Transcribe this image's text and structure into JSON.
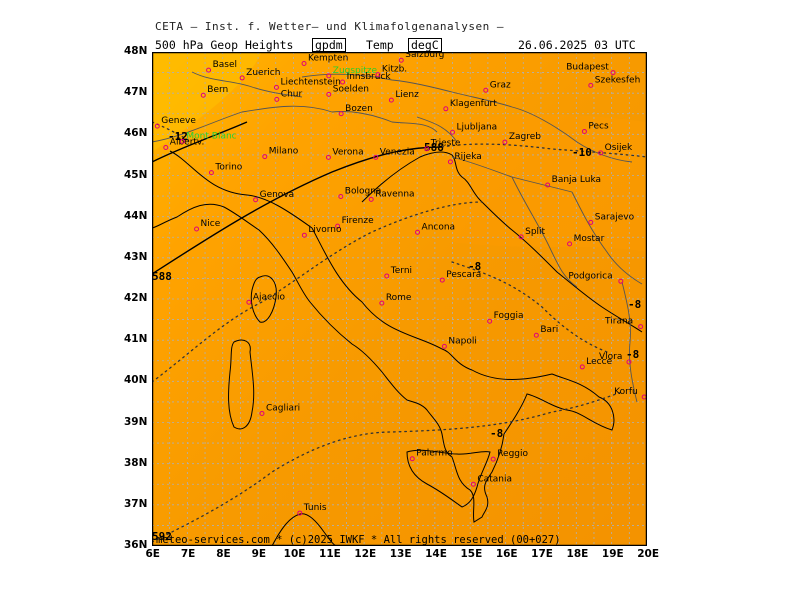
{
  "header": {
    "agency": "CETA — Inst. f. Wetter— und Klimafolgenanalysen —"
  },
  "title_bar": {
    "field_label": "500 hPa Geop Heights",
    "unit_height": "gpdm",
    "temp_label": "Temp",
    "unit_temp": "degC",
    "datetime": "26.06.2025 03 UTC"
  },
  "footer": {
    "copyright": "meteo-services.com * (c)2025 IWKF * All rights reserved (00+027)"
  },
  "axes": {
    "lat_labels": [
      "48N",
      "47N",
      "46N",
      "45N",
      "44N",
      "43N",
      "42N",
      "41N",
      "40N",
      "39N",
      "38N",
      "37N",
      "36N"
    ],
    "lon_labels": [
      "6E",
      "7E",
      "8E",
      "9E",
      "10E",
      "11E",
      "12E",
      "13E",
      "14E",
      "15E",
      "16E",
      "17E",
      "18E",
      "19E",
      "20E"
    ]
  },
  "contours": {
    "height_labels": [
      "588",
      "592",
      "588"
    ],
    "temp_labels": [
      "-12",
      "-10",
      "-8",
      "-8",
      "-8",
      "-8"
    ]
  },
  "cities": [
    {
      "name": "Basel",
      "lon": 7.6,
      "lat": 47.56,
      "color": "#000"
    },
    {
      "name": "Zuerich",
      "lon": 8.55,
      "lat": 47.37,
      "color": "#000"
    },
    {
      "name": "Bern",
      "lon": 7.45,
      "lat": 46.95,
      "color": "#000"
    },
    {
      "name": "Chur",
      "lon": 9.53,
      "lat": 46.85,
      "color": "#000"
    },
    {
      "name": "Liechtenstein",
      "lon": 9.52,
      "lat": 47.14,
      "color": "#000"
    },
    {
      "name": "Kempten",
      "lon": 10.3,
      "lat": 47.72,
      "color": "#000"
    },
    {
      "name": "Zugspitze",
      "lon": 11.0,
      "lat": 47.42,
      "color": "#2ad02a"
    },
    {
      "name": "Innsbruck",
      "lon": 11.39,
      "lat": 47.27,
      "color": "#000"
    },
    {
      "name": "Kitzb.",
      "lon": 12.39,
      "lat": 47.45,
      "color": "#000"
    },
    {
      "name": "Salzburg",
      "lon": 13.05,
      "lat": 47.8,
      "color": "#000"
    },
    {
      "name": "Soelden",
      "lon": 11.0,
      "lat": 46.97,
      "color": "#000"
    },
    {
      "name": "Lienz",
      "lon": 12.77,
      "lat": 46.83,
      "color": "#000"
    },
    {
      "name": "Bozen",
      "lon": 11.35,
      "lat": 46.5,
      "color": "#000"
    },
    {
      "name": "Graz",
      "lon": 15.44,
      "lat": 47.07,
      "color": "#000"
    },
    {
      "name": "Klagenfurt",
      "lon": 14.31,
      "lat": 46.62,
      "color": "#000"
    },
    {
      "name": "Ljubljana",
      "lon": 14.5,
      "lat": 46.05,
      "color": "#000"
    },
    {
      "name": "Zagreb",
      "lon": 15.98,
      "lat": 45.81,
      "color": "#000"
    },
    {
      "name": "Budapest",
      "lon": 19.04,
      "lat": 47.5,
      "color": "#000"
    },
    {
      "name": "Szekesfeh",
      "lon": 18.41,
      "lat": 47.19,
      "color": "#000"
    },
    {
      "name": "Pecs",
      "lon": 18.23,
      "lat": 46.07,
      "color": "#000"
    },
    {
      "name": "Osijek",
      "lon": 18.69,
      "lat": 45.55,
      "color": "#000"
    },
    {
      "name": "Geneve",
      "lon": 6.15,
      "lat": 46.2,
      "color": "#000"
    },
    {
      "name": "Albertv.",
      "lon": 6.39,
      "lat": 45.68,
      "color": "#000"
    },
    {
      "name": "Mont Blanc",
      "lon": 6.86,
      "lat": 45.83,
      "color": "#2ad02a"
    },
    {
      "name": "Milano",
      "lon": 9.19,
      "lat": 45.46,
      "color": "#000"
    },
    {
      "name": "Venezia",
      "lon": 12.33,
      "lat": 45.44,
      "color": "#000"
    },
    {
      "name": "Verona",
      "lon": 10.99,
      "lat": 45.44,
      "color": "#000"
    },
    {
      "name": "Trieste",
      "lon": 13.77,
      "lat": 45.65,
      "color": "#000"
    },
    {
      "name": "Rijeka",
      "lon": 14.44,
      "lat": 45.33,
      "color": "#000"
    },
    {
      "name": "Torino",
      "lon": 7.68,
      "lat": 45.07,
      "color": "#000"
    },
    {
      "name": "Genova",
      "lon": 8.93,
      "lat": 44.41,
      "color": "#000"
    },
    {
      "name": "Bologna",
      "lon": 11.34,
      "lat": 44.49,
      "color": "#000"
    },
    {
      "name": "Ravenna",
      "lon": 12.2,
      "lat": 44.42,
      "color": "#000"
    },
    {
      "name": "Firenze",
      "lon": 11.25,
      "lat": 43.77,
      "color": "#000"
    },
    {
      "name": "Livorno",
      "lon": 10.31,
      "lat": 43.55,
      "color": "#000"
    },
    {
      "name": "Ancona",
      "lon": 13.51,
      "lat": 43.62,
      "color": "#000"
    },
    {
      "name": "Nice",
      "lon": 7.26,
      "lat": 43.7,
      "color": "#000"
    },
    {
      "name": "Banja Luka",
      "lon": 17.19,
      "lat": 44.77,
      "color": "#000"
    },
    {
      "name": "Sarajevo",
      "lon": 18.41,
      "lat": 43.86,
      "color": "#000"
    },
    {
      "name": "Split",
      "lon": 16.44,
      "lat": 43.51,
      "color": "#000"
    },
    {
      "name": "Mostar",
      "lon": 17.81,
      "lat": 43.34,
      "color": "#000"
    },
    {
      "name": "Podgorica",
      "lon": 19.26,
      "lat": 42.43,
      "color": "#000"
    },
    {
      "name": "Terni",
      "lon": 12.64,
      "lat": 42.56,
      "color": "#000"
    },
    {
      "name": "Pescara",
      "lon": 14.21,
      "lat": 42.46,
      "color": "#000"
    },
    {
      "name": "Rome",
      "lon": 12.5,
      "lat": 41.9,
      "color": "#000"
    },
    {
      "name": "Ajaccio",
      "lon": 8.74,
      "lat": 41.92,
      "color": "#000"
    },
    {
      "name": "Tirana",
      "lon": 19.82,
      "lat": 41.33,
      "color": "#000"
    },
    {
      "name": "Foggia",
      "lon": 15.55,
      "lat": 41.46,
      "color": "#000"
    },
    {
      "name": "Bari",
      "lon": 16.87,
      "lat": 41.12,
      "color": "#000"
    },
    {
      "name": "Napoli",
      "lon": 14.27,
      "lat": 40.85,
      "color": "#000"
    },
    {
      "name": "Lecce",
      "lon": 18.17,
      "lat": 40.35,
      "color": "#000"
    },
    {
      "name": "Vlora",
      "lon": 19.49,
      "lat": 40.47,
      "color": "#000"
    },
    {
      "name": "Korfu",
      "lon": 19.92,
      "lat": 39.62,
      "color": "#000"
    },
    {
      "name": "Cagliari",
      "lon": 9.11,
      "lat": 39.22,
      "color": "#000"
    },
    {
      "name": "Reggio",
      "lon": 15.65,
      "lat": 38.11,
      "color": "#000"
    },
    {
      "name": "Palermo",
      "lon": 13.36,
      "lat": 38.12,
      "color": "#000"
    },
    {
      "name": "Catania",
      "lon": 15.09,
      "lat": 37.5,
      "color": "#000"
    },
    {
      "name": "Tunis",
      "lon": 10.18,
      "lat": 36.8,
      "color": "#000"
    }
  ],
  "colors": {
    "field_warm": "#ff9c00",
    "field_mid": "#f7a000",
    "field_yellow": "#ffb400",
    "boundary": "#555555",
    "coast": "#000000",
    "city_dot": "#e0007a"
  }
}
